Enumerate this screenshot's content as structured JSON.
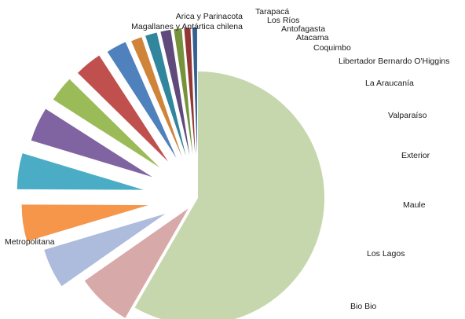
{
  "chart_data": {
    "type": "pie",
    "title": "",
    "exploded": true,
    "legend": "none",
    "slices": [
      {
        "label": "Metropolitana",
        "value": 58.5,
        "color": "#c6d6ad"
      },
      {
        "label": "Bio Bio",
        "value": 7.0,
        "color": "#d8a9a9"
      },
      {
        "label": "Los Lagos",
        "value": 5.1,
        "color": "#adbcdc"
      },
      {
        "label": "Maule",
        "value": 4.7,
        "color": "#f5964b"
      },
      {
        "label": "Exterior",
        "value": 4.6,
        "color": "#4bacc6"
      },
      {
        "label": "Valparaíso",
        "value": 4.4,
        "color": "#8064a2"
      },
      {
        "label": "La Araucanía",
        "value": 3.3,
        "color": "#9bbb59"
      },
      {
        "label": "Libertador Bernardo O'Higgins",
        "value": 3.5,
        "color": "#c0504d"
      },
      {
        "label": "Coquimbo",
        "value": 2.6,
        "color": "#4f81bd"
      },
      {
        "label": "Atacama",
        "value": 1.4,
        "color": "#d0843a"
      },
      {
        "label": "Antofagasta",
        "value": 1.5,
        "color": "#31859c"
      },
      {
        "label": "Los Ríos",
        "value": 1.3,
        "color": "#604a7b"
      },
      {
        "label": "Tarapacá",
        "value": 1.0,
        "color": "#76923c"
      },
      {
        "label": "Arica y Parinacota",
        "value": 0.8,
        "color": "#943634"
      },
      {
        "label": "Magallanes y Antártica chilena",
        "value": 0.6,
        "color": "#366092"
      }
    ]
  }
}
